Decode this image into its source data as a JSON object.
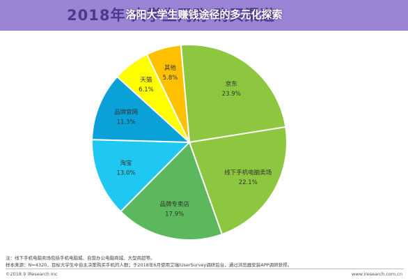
{
  "header": {
    "background_title": "2018年 大学生网购 购买渠道",
    "overlay_title": "洛阳大学生赚钱途径的多元化探索"
  },
  "chart_data": {
    "type": "pie",
    "categories": [
      "京东",
      "线下手机电脑卖场",
      "品牌专卖店",
      "淘宝",
      "品牌官网",
      "天猫",
      "其他"
    ],
    "values": [
      23.9,
      22.1,
      17.9,
      13.0,
      11.3,
      6.1,
      5.8
    ],
    "value_labels": [
      "23.9%",
      "22.1%",
      "17.9%",
      "13.0%",
      "11.3%",
      "6.1%",
      "5.8%"
    ],
    "colors": [
      "#8dc63f",
      "#8dc63f",
      "#5cb85c",
      "#1ec8f0",
      "#0aa0d8",
      "#ffff00",
      "#ffc000"
    ],
    "start_angle_deg": -5,
    "direction": "clockwise",
    "title": "",
    "legend": "none"
  },
  "footnotes": {
    "line1": "注：线下手机电脑卖场包括手机电脑城、自营办公电脑商城、大型商超等。",
    "line2": "样本来源：N=4320，目标大学生中自主决策购买手机的人群；于2018年6月使用艾瑞iUserSurvey调研后台，通过浏览器安装APP调研获得。"
  },
  "footer": {
    "left": "©2018.9 iResearch Inc",
    "right": "www.iresearch.com.cn"
  }
}
